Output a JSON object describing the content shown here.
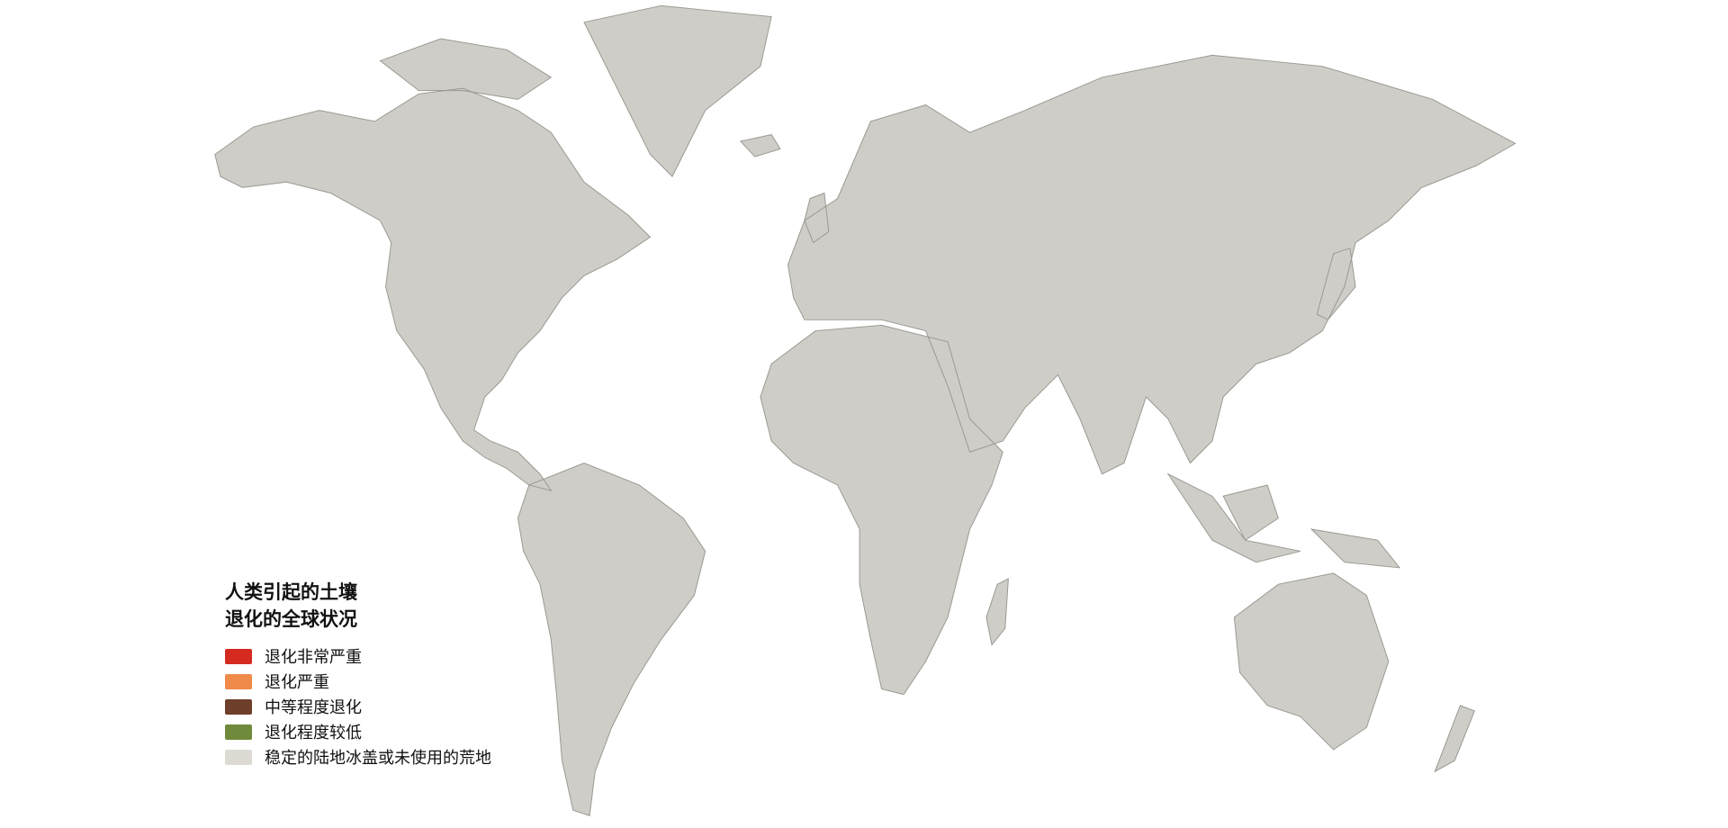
{
  "legend": {
    "title_line1": "人类引起的土壤",
    "title_line2": "退化的全球状况",
    "items": [
      {
        "label": "退化非常严重",
        "color": "#d42a20"
      },
      {
        "label": "退化严重",
        "color": "#f08a4b"
      },
      {
        "label": "中等程度退化",
        "color": "#6e3f2a"
      },
      {
        "label": "退化程度较低",
        "color": "#6f8a3a"
      },
      {
        "label": "稳定的陆地冰盖或未使用的荒地",
        "color": "#dcdad3"
      }
    ]
  },
  "map": {
    "land_base_color": "#cfcdc8",
    "ocean_color": "#ffffff"
  }
}
